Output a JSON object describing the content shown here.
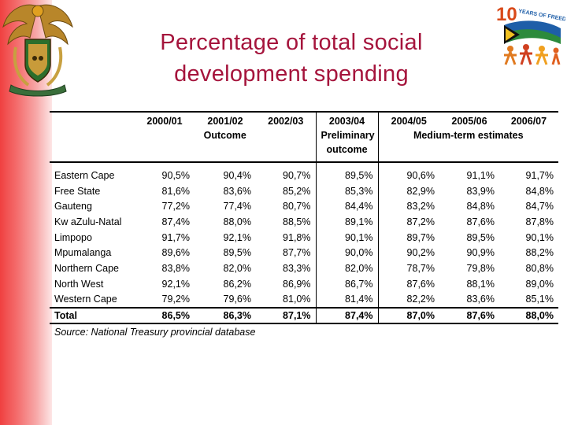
{
  "title": {
    "line1": "Percentage of total social",
    "line2": "development spending"
  },
  "logo": {
    "ten_years": "10",
    "years_text": "YEARS OF FREEDOM"
  },
  "colors": {
    "title": "#a5143c",
    "left_bar": "#f04040"
  },
  "table": {
    "year_headers": [
      "2000/01",
      "2001/02",
      "2002/03",
      "2003/04",
      "2004/05",
      "2005/06",
      "2006/07"
    ],
    "outcome_label": "Outcome",
    "preliminary_line1": "Preliminary",
    "preliminary_line2": "outcome",
    "medium_term_label": "Medium-term estimates",
    "rows": [
      {
        "province": "Eastern Cape",
        "values": [
          "90,5%",
          "90,4%",
          "90,7%",
          "89,5%",
          "90,6%",
          "91,1%",
          "91,7%"
        ]
      },
      {
        "province": "Free State",
        "values": [
          "81,6%",
          "83,6%",
          "85,2%",
          "85,3%",
          "82,9%",
          "83,9%",
          "84,8%"
        ]
      },
      {
        "province": "Gauteng",
        "values": [
          "77,2%",
          "77,4%",
          "80,7%",
          "84,4%",
          "83,2%",
          "84,8%",
          "84,7%"
        ]
      },
      {
        "province": "Kw aZulu-Natal",
        "values": [
          "87,4%",
          "88,0%",
          "88,5%",
          "89,1%",
          "87,2%",
          "87,6%",
          "87,8%"
        ]
      },
      {
        "province": "Limpopo",
        "values": [
          "91,7%",
          "92,1%",
          "91,8%",
          "90,1%",
          "89,7%",
          "89,5%",
          "90,1%"
        ]
      },
      {
        "province": "Mpumalanga",
        "values": [
          "89,6%",
          "89,5%",
          "87,7%",
          "90,0%",
          "90,2%",
          "90,9%",
          "88,2%"
        ]
      },
      {
        "province": "Northern Cape",
        "values": [
          "83,8%",
          "82,0%",
          "83,3%",
          "82,0%",
          "78,7%",
          "79,8%",
          "80,8%"
        ]
      },
      {
        "province": "North West",
        "values": [
          "92,1%",
          "86,2%",
          "86,9%",
          "86,7%",
          "87,6%",
          "88,1%",
          "89,0%"
        ]
      },
      {
        "province": "Western Cape",
        "values": [
          "79,2%",
          "79,6%",
          "81,0%",
          "81,4%",
          "82,2%",
          "83,6%",
          "85,1%"
        ]
      }
    ],
    "total": {
      "label": "Total",
      "values": [
        "86,5%",
        "86,3%",
        "87,1%",
        "87,4%",
        "87,0%",
        "87,6%",
        "88,0%"
      ]
    },
    "source": "Source: National Treasury provincial database"
  }
}
